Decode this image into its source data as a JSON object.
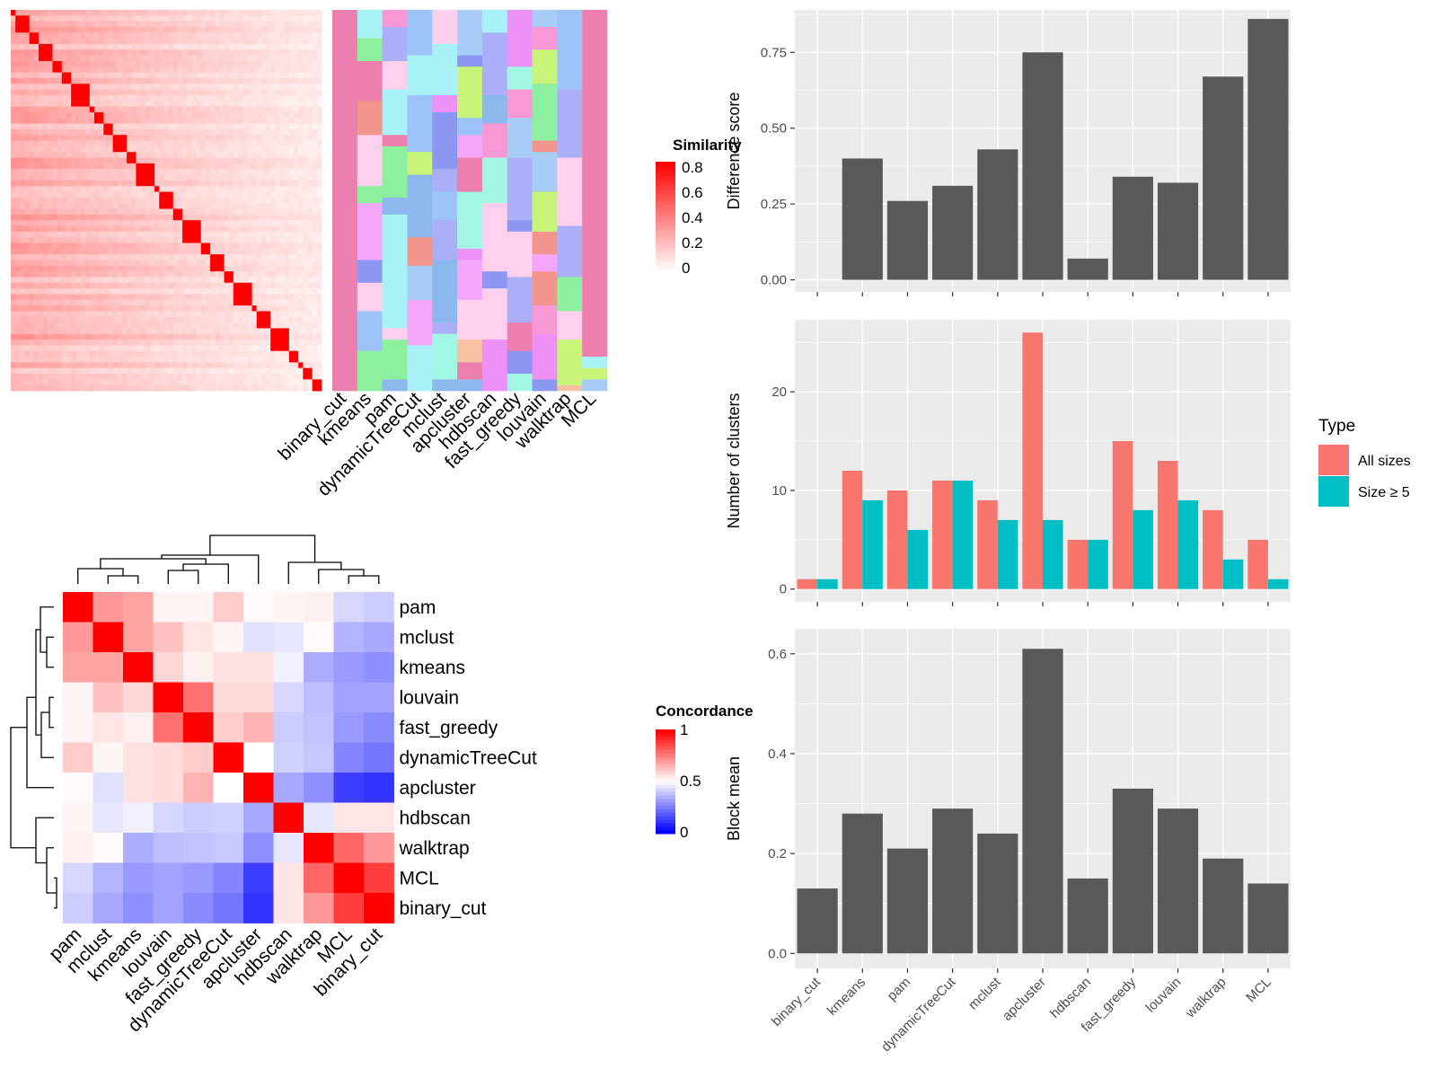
{
  "methods": [
    "binary_cut",
    "kmeans",
    "pam",
    "dynamicTreeCut",
    "mclust",
    "apcluster",
    "hdbscan",
    "fast_greedy",
    "louvain",
    "walktrap",
    "MCL"
  ],
  "colors": {
    "panel_bg": "#EBEBEB",
    "grid": "#FFFFFF",
    "bar_dark": "#595959",
    "all_sizes": "#F8766D",
    "size5": "#00BFC4",
    "heat_red": "#FF0000",
    "heat_white": "#FFFFFF",
    "heat_blue": "#0000FF",
    "cluster_palette": [
      "#ED7FAE",
      "#FFD0EE",
      "#F2958C",
      "#8DB8EE",
      "#A7CCF5",
      "#8C97F2",
      "#C8F47A",
      "#A8F2F7",
      "#AAAFF7",
      "#8DF09E",
      "#F4A6F9",
      "#EE91F6",
      "#F7C2A2",
      "#9CC4FA",
      "#A2F7E4",
      "#F898D5"
    ]
  },
  "similarity_panel": {
    "legend_title": "Similarity",
    "legend_ticks": [
      "0.8",
      "0.6",
      "0.4",
      "0.2",
      "0"
    ],
    "method_labels": [
      "binary_cut",
      "kmeans",
      "pam",
      "dynamicTreeCut",
      "mclust",
      "apcluster",
      "hdbscan",
      "fast_greedy",
      "louvain",
      "walktrap",
      "MCL"
    ]
  },
  "concordance_panel": {
    "legend_title": "Concordance",
    "legend_ticks": [
      "1",
      "0.5",
      "0"
    ],
    "order": [
      "pam",
      "mclust",
      "kmeans",
      "louvain",
      "fast_greedy",
      "dynamicTreeCut",
      "apcluster",
      "hdbscan",
      "walktrap",
      "MCL",
      "binary_cut"
    ],
    "matrix": [
      [
        1.0,
        0.7,
        0.68,
        0.52,
        0.52,
        0.6,
        0.51,
        0.52,
        0.53,
        0.42,
        0.4
      ],
      [
        0.7,
        1.0,
        0.68,
        0.62,
        0.55,
        0.52,
        0.44,
        0.45,
        0.51,
        0.35,
        0.33
      ],
      [
        0.68,
        0.68,
        1.0,
        0.58,
        0.53,
        0.56,
        0.56,
        0.47,
        0.34,
        0.3,
        0.28
      ],
      [
        0.52,
        0.62,
        0.58,
        1.0,
        0.78,
        0.57,
        0.57,
        0.42,
        0.37,
        0.32,
        0.32
      ],
      [
        0.52,
        0.55,
        0.53,
        0.78,
        1.0,
        0.6,
        0.65,
        0.4,
        0.38,
        0.3,
        0.27
      ],
      [
        0.6,
        0.52,
        0.56,
        0.57,
        0.6,
        1.0,
        0.5,
        0.41,
        0.39,
        0.26,
        0.23
      ],
      [
        0.51,
        0.44,
        0.56,
        0.57,
        0.65,
        0.5,
        1.0,
        0.33,
        0.28,
        0.12,
        0.1
      ],
      [
        0.52,
        0.45,
        0.47,
        0.42,
        0.4,
        0.41,
        0.33,
        1.0,
        0.45,
        0.55,
        0.55
      ],
      [
        0.53,
        0.51,
        0.34,
        0.37,
        0.38,
        0.39,
        0.28,
        0.45,
        1.0,
        0.8,
        0.7
      ],
      [
        0.42,
        0.35,
        0.3,
        0.32,
        0.3,
        0.26,
        0.12,
        0.55,
        0.8,
        1.0,
        0.88
      ],
      [
        0.4,
        0.33,
        0.28,
        0.32,
        0.27,
        0.23,
        0.1,
        0.55,
        0.7,
        0.88,
        1.0
      ]
    ]
  },
  "chart_data": [
    {
      "type": "heatmap",
      "title": "",
      "legend_title": "Similarity",
      "legend_ticks": [
        0,
        0.2,
        0.4,
        0.6,
        0.8
      ],
      "block_sizes": [
        1,
        3,
        2,
        3,
        2,
        2,
        4,
        1,
        2,
        2,
        3,
        2,
        4,
        1,
        3,
        2,
        4,
        2,
        3,
        2,
        4,
        1,
        3,
        4,
        2,
        1,
        2,
        2
      ],
      "diagonal_value": 0.95,
      "background_range": [
        0.05,
        0.3
      ]
    },
    {
      "type": "heatmap",
      "title": "",
      "columns": [
        "binary_cut",
        "kmeans",
        "pam",
        "dynamicTreeCut",
        "mclust",
        "apcluster",
        "hdbscan",
        "fast_greedy",
        "louvain",
        "walktrap",
        "MCL"
      ],
      "note_values": "categorical cluster memberships per column"
    },
    {
      "type": "heatmap",
      "legend_title": "Concordance",
      "categories": [
        "pam",
        "mclust",
        "kmeans",
        "louvain",
        "fast_greedy",
        "dynamicTreeCut",
        "apcluster",
        "hdbscan",
        "walktrap",
        "MCL",
        "binary_cut"
      ],
      "range": [
        0,
        1
      ]
    },
    {
      "type": "bar",
      "categories": [
        "binary_cut",
        "kmeans",
        "pam",
        "dynamicTreeCut",
        "mclust",
        "apcluster",
        "hdbscan",
        "fast_greedy",
        "louvain",
        "walktrap",
        "MCL"
      ],
      "values": [
        0,
        0.4,
        0.26,
        0.31,
        0.43,
        0.75,
        0.07,
        0.34,
        0.32,
        0.67,
        0.86
      ],
      "ylabel": "Difference score",
      "ylim": [
        -0.04,
        0.89
      ],
      "yticks": [
        0.0,
        0.25,
        0.5,
        0.75
      ],
      "ytick_labels": [
        "0.00",
        "0.25",
        "0.50",
        "0.75"
      ]
    },
    {
      "type": "bar",
      "categories": [
        "binary_cut",
        "kmeans",
        "pam",
        "dynamicTreeCut",
        "mclust",
        "apcluster",
        "hdbscan",
        "fast_greedy",
        "louvain",
        "walktrap",
        "MCL"
      ],
      "series": [
        {
          "name": "All sizes",
          "values": [
            1,
            12,
            10,
            11,
            9,
            26,
            5,
            15,
            13,
            8,
            5
          ]
        },
        {
          "name": "Size ≥ 5",
          "values": [
            1,
            9,
            6,
            11,
            7,
            7,
            5,
            8,
            9,
            3,
            1
          ]
        }
      ],
      "ylabel": "Number of clusters",
      "legend_title": "Type",
      "ylim": [
        -1.3,
        27.3
      ],
      "yticks": [
        0,
        10,
        20
      ],
      "ytick_labels": [
        "0",
        "10",
        "20"
      ]
    },
    {
      "type": "bar",
      "categories": [
        "binary_cut",
        "kmeans",
        "pam",
        "dynamicTreeCut",
        "mclust",
        "apcluster",
        "hdbscan",
        "fast_greedy",
        "louvain",
        "walktrap",
        "MCL"
      ],
      "values": [
        0.13,
        0.28,
        0.21,
        0.29,
        0.24,
        0.61,
        0.15,
        0.33,
        0.29,
        0.19,
        0.14
      ],
      "ylabel": "Block mean",
      "ylim": [
        -0.03,
        0.65
      ],
      "yticks": [
        0.0,
        0.2,
        0.4,
        0.6
      ],
      "ytick_labels": [
        "0.0",
        "0.2",
        "0.4",
        "0.6"
      ]
    }
  ]
}
